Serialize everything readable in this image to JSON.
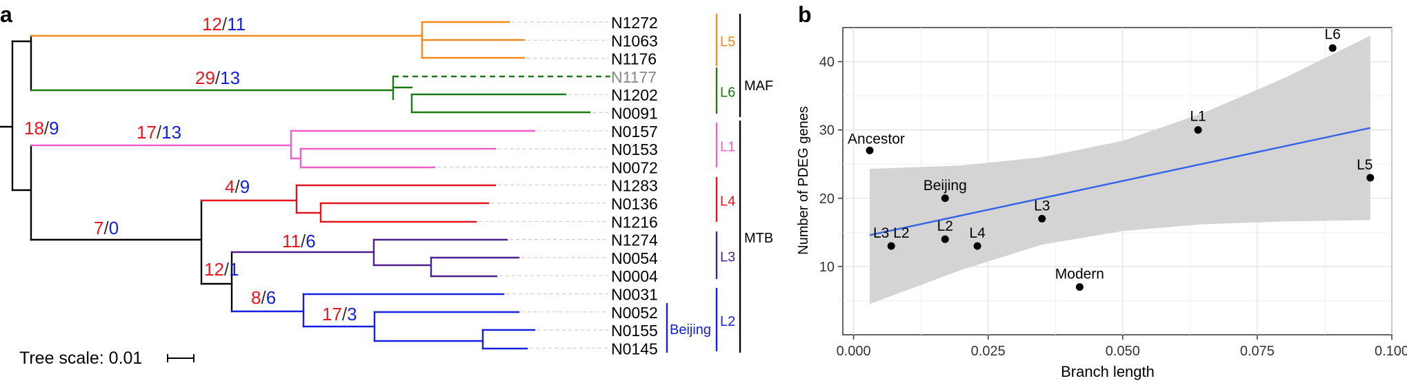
{
  "panel_a": {
    "label": "a",
    "tree_scale_label": "Tree scale: 0.01",
    "taxa": [
      {
        "name": "N1272",
        "color": "#000000"
      },
      {
        "name": "N1063",
        "color": "#000000"
      },
      {
        "name": "N1176",
        "color": "#000000"
      },
      {
        "name": "N1177",
        "color": "#888888"
      },
      {
        "name": "N1202",
        "color": "#000000"
      },
      {
        "name": "N0091",
        "color": "#000000"
      },
      {
        "name": "N0157",
        "color": "#000000"
      },
      {
        "name": "N0153",
        "color": "#000000"
      },
      {
        "name": "N0072",
        "color": "#000000"
      },
      {
        "name": "N1283",
        "color": "#000000"
      },
      {
        "name": "N0136",
        "color": "#000000"
      },
      {
        "name": "N1216",
        "color": "#000000"
      },
      {
        "name": "N1274",
        "color": "#000000"
      },
      {
        "name": "N0054",
        "color": "#000000"
      },
      {
        "name": "N0004",
        "color": "#000000"
      },
      {
        "name": "N0031",
        "color": "#000000"
      },
      {
        "name": "N0052",
        "color": "#000000"
      },
      {
        "name": "N0155",
        "color": "#000000"
      },
      {
        "name": "N0145",
        "color": "#000000"
      }
    ],
    "branch_labels": [
      {
        "red": "12",
        "blue": "11"
      },
      {
        "red": "29",
        "blue": "13"
      },
      {
        "red": "18",
        "blue": "9"
      },
      {
        "red": "17",
        "blue": "13"
      },
      {
        "red": "4",
        "blue": "9"
      },
      {
        "red": "7",
        "blue": "0"
      },
      {
        "red": "11",
        "blue": "6"
      },
      {
        "red": "12",
        "blue": "1"
      },
      {
        "red": "8",
        "blue": "6"
      },
      {
        "red": "17",
        "blue": "3"
      }
    ],
    "lineages": [
      {
        "name": "L5",
        "color": "#f08a1c"
      },
      {
        "name": "L6",
        "color": "#1a7a12"
      },
      {
        "name": "L1",
        "color": "#ee5fc8"
      },
      {
        "name": "L4",
        "color": "#e8141c"
      },
      {
        "name": "L3",
        "color": "#4b1d8f"
      },
      {
        "name": "L2",
        "color": "#1420e0"
      }
    ],
    "beijing_label": "Beijing",
    "groups": [
      {
        "name": "MAF"
      },
      {
        "name": "MTB"
      }
    ],
    "colors": {
      "red": "#f0141e",
      "blue": "#1420e0",
      "root": "#000000"
    }
  },
  "chart_data": {
    "type": "scatter",
    "panel_label": "b",
    "title": "",
    "xlabel": "Branch length",
    "ylabel": "Number of PDEG genes",
    "xlim": [
      -0.002,
      0.1
    ],
    "ylim": [
      0,
      45
    ],
    "xticks": [
      0.0,
      0.025,
      0.05,
      0.075,
      0.1
    ],
    "xtick_labels": [
      "0.000",
      "0.025",
      "0.050",
      "0.075",
      "0.100"
    ],
    "yticks": [
      10,
      20,
      30,
      40
    ],
    "ytick_labels": [
      "10",
      "20",
      "30",
      "40"
    ],
    "grid": true,
    "points": [
      {
        "label": "L6",
        "x": 0.089,
        "y": 42
      },
      {
        "label": "L1",
        "x": 0.064,
        "y": 30
      },
      {
        "label": "Ancestor",
        "x": 0.003,
        "y": 27
      },
      {
        "label": "L5",
        "x": 0.096,
        "y": 23
      },
      {
        "label": "Beijing",
        "x": 0.017,
        "y": 20
      },
      {
        "label": "L3",
        "x": 0.035,
        "y": 17
      },
      {
        "label": "L2",
        "x": 0.017,
        "y": 14
      },
      {
        "label": "L4",
        "x": 0.023,
        "y": 13
      },
      {
        "label": "L3  L2",
        "x": 0.007,
        "y": 13
      },
      {
        "label": "Modern",
        "x": 0.042,
        "y": 7
      }
    ],
    "fit_line": {
      "x": [
        0.003,
        0.096
      ],
      "y": [
        14.6,
        30.3
      ],
      "color": "#3366e6"
    },
    "confidence_band": {
      "x": [
        0.003,
        0.02,
        0.035,
        0.05,
        0.065,
        0.08,
        0.096
      ],
      "upper": [
        24.3,
        24.8,
        26.0,
        28.4,
        32.5,
        37.6,
        43.8
      ],
      "lower": [
        4.5,
        9.5,
        13.2,
        15.2,
        16.2,
        16.6,
        16.8
      ],
      "color": "#d4d4d4"
    }
  }
}
